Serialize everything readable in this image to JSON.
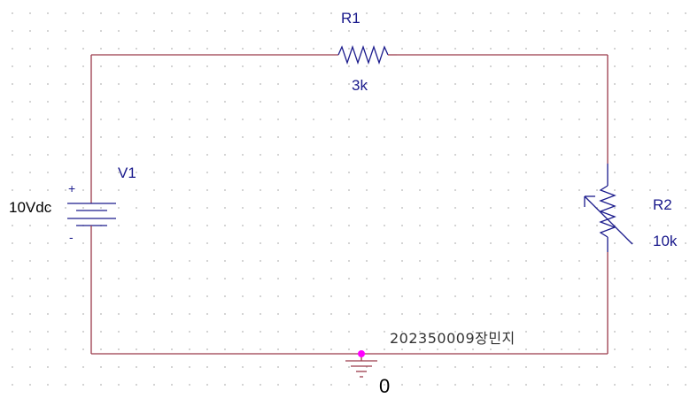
{
  "components": {
    "r1": {
      "ref": "R1",
      "value": "3k"
    },
    "r2": {
      "ref": "R2",
      "value": "10k"
    },
    "v1": {
      "ref": "V1",
      "value": "10Vdc",
      "plus": "+",
      "minus": "-"
    }
  },
  "ground": {
    "net": "0"
  },
  "annotation": "202350009장민지",
  "colors": {
    "wire": "#9b3a4a",
    "component": "#1a1a8c",
    "node_marker": "#ff00ff",
    "grid_dot": "#c8c8c8"
  }
}
